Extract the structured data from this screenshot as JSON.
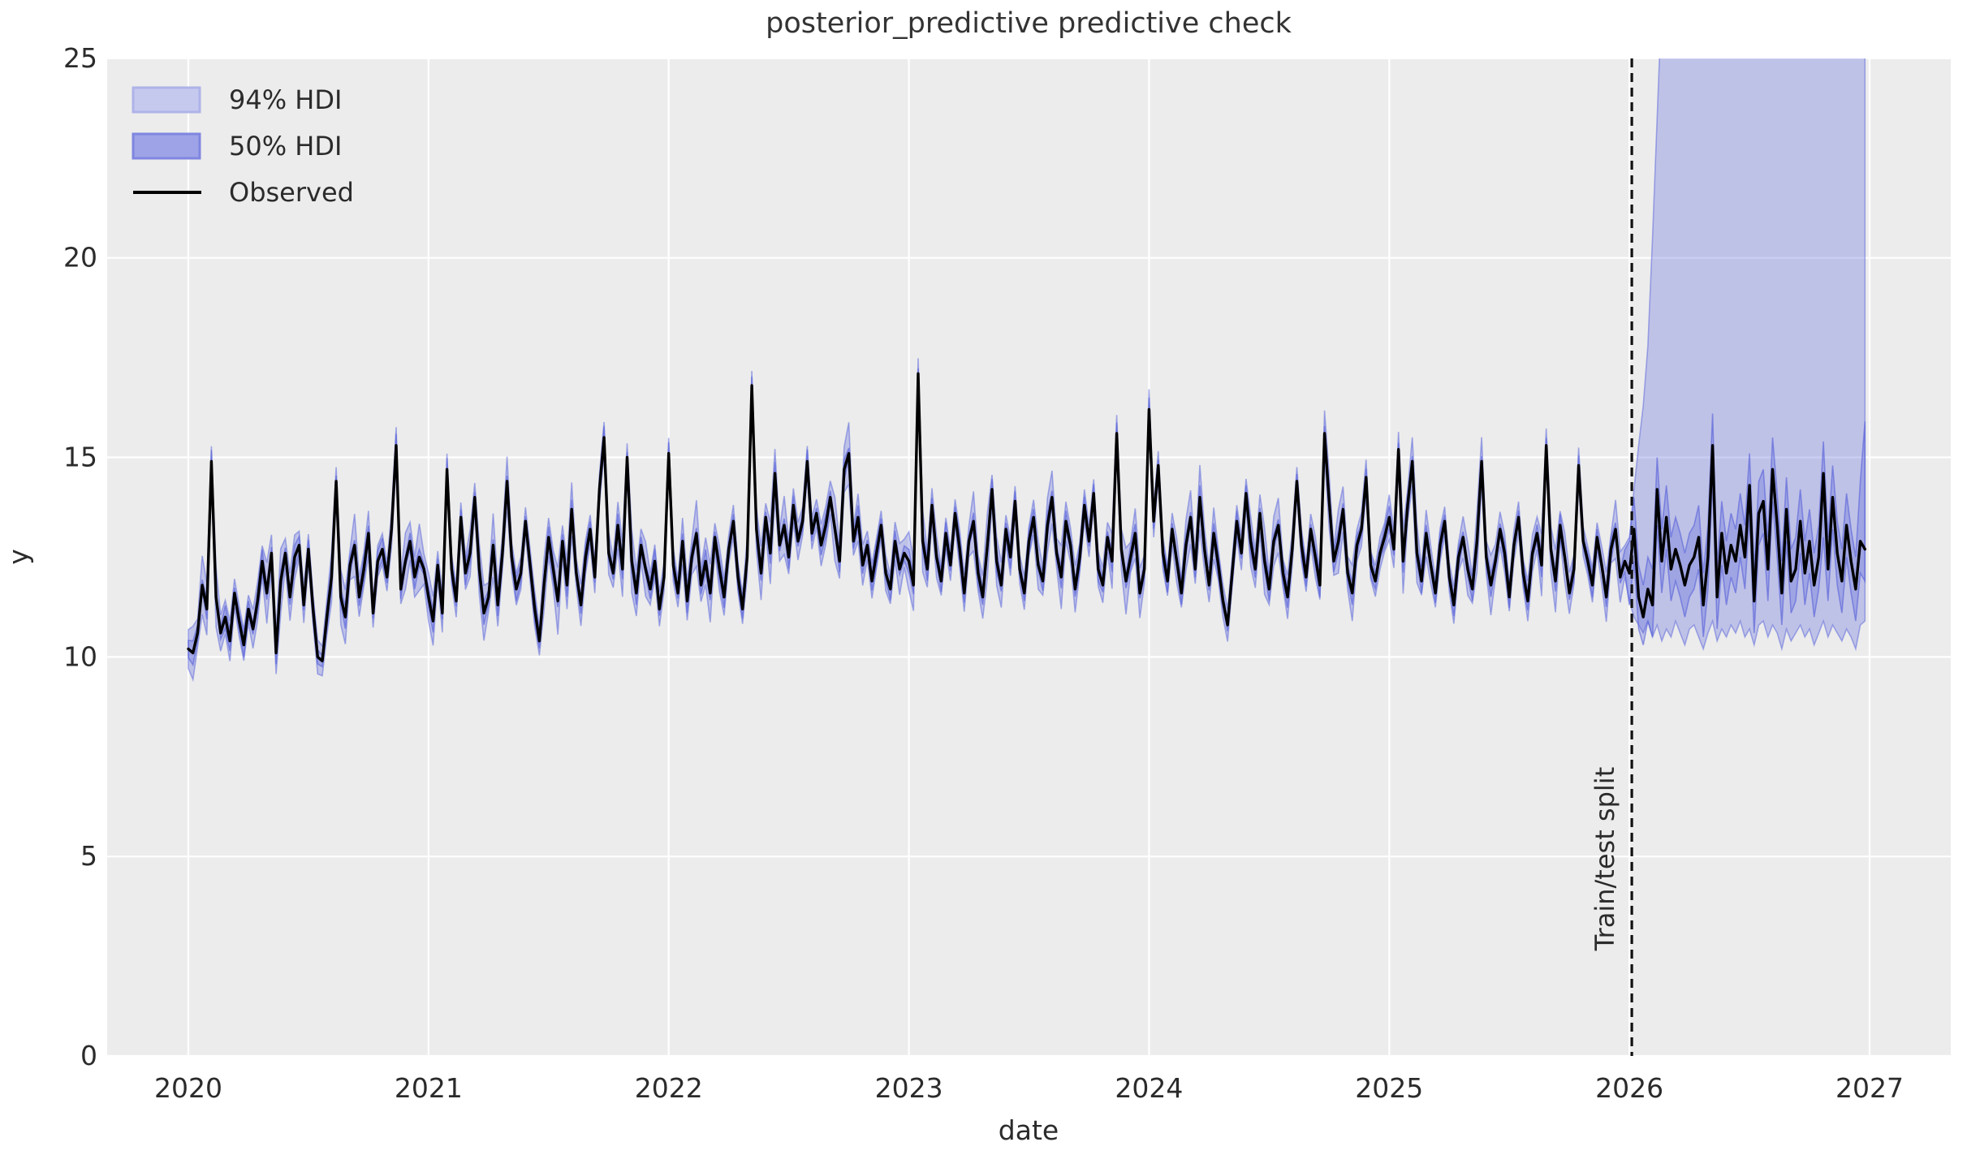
{
  "title": "posterior_predictive predictive check",
  "axes": {
    "xlabel": "date",
    "ylabel": "y",
    "x_ticks": [
      2020,
      2021,
      2022,
      2023,
      2024,
      2025,
      2026,
      2027
    ],
    "y_ticks": [
      0,
      5,
      10,
      15,
      20,
      25
    ],
    "xlim": [
      2019.662,
      2027.338
    ],
    "ylim": [
      0,
      25
    ],
    "background_color": "#ececec",
    "gridline_color": "#ffffff"
  },
  "legend": {
    "items": [
      {
        "label": "94% HDI",
        "swatch_fill": "#c6c9ee",
        "swatch_edge": "#aeb3e9"
      },
      {
        "label": "50% HDI",
        "swatch_fill": "#9da3e6",
        "swatch_edge": "#7f86e0"
      },
      {
        "label": "Observed",
        "line_color": "#000000"
      }
    ]
  },
  "split": {
    "x": 2026.01,
    "label": "Train/test split",
    "line_color": "#111111"
  },
  "colors": {
    "hdi_base": "#5661d9",
    "observed_line": "#000000",
    "text": "#2b2b2b"
  },
  "chart_data": {
    "type": "line",
    "title": "posterior_predictive predictive check",
    "xlabel": "date",
    "ylabel": "y",
    "x_start": 2020.0,
    "x_step_years": 0.0192308,
    "n_train": 312,
    "legend_position": "upper left",
    "grid": true,
    "observed": [
      10.2,
      10.1,
      10.6,
      11.8,
      11.2,
      14.9,
      11.5,
      10.6,
      11.0,
      10.4,
      11.6,
      10.9,
      10.3,
      11.2,
      10.7,
      11.4,
      12.4,
      11.6,
      12.6,
      10.1,
      11.9,
      12.6,
      11.5,
      12.5,
      12.8,
      11.3,
      12.7,
      11.2,
      10.0,
      9.9,
      11.0,
      12.0,
      14.4,
      11.5,
      11.0,
      12.3,
      12.8,
      11.5,
      12.2,
      13.1,
      11.1,
      12.4,
      12.7,
      12.0,
      13.2,
      15.3,
      11.7,
      12.4,
      12.9,
      12.0,
      12.5,
      12.2,
      11.5,
      10.9,
      12.3,
      11.1,
      14.7,
      12.2,
      11.4,
      13.5,
      12.1,
      12.6,
      14.0,
      12.2,
      11.1,
      11.5,
      12.8,
      11.3,
      12.6,
      14.4,
      12.5,
      11.7,
      12.1,
      13.4,
      12.3,
      11.2,
      10.4,
      11.8,
      13.0,
      12.2,
      11.4,
      12.9,
      11.8,
      13.7,
      12.1,
      11.3,
      12.5,
      13.2,
      12.0,
      14.2,
      15.5,
      12.6,
      12.1,
      13.3,
      12.2,
      15.0,
      12.4,
      11.6,
      12.8,
      12.2,
      11.7,
      12.4,
      11.2,
      12.0,
      15.1,
      12.3,
      11.6,
      12.9,
      11.4,
      12.5,
      13.1,
      11.8,
      12.4,
      11.6,
      13.0,
      12.2,
      11.5,
      12.7,
      13.4,
      12.0,
      11.2,
      12.5,
      16.8,
      13.2,
      12.1,
      13.5,
      12.6,
      14.6,
      12.8,
      13.3,
      12.5,
      13.8,
      12.9,
      13.4,
      14.9,
      13.1,
      13.6,
      12.8,
      13.3,
      14.0,
      13.2,
      12.4,
      14.7,
      15.1,
      12.9,
      13.5,
      12.3,
      12.8,
      11.9,
      12.6,
      13.3,
      12.1,
      11.7,
      12.9,
      12.2,
      12.6,
      12.4,
      11.8,
      17.1,
      12.9,
      12.2,
      13.8,
      12.5,
      11.9,
      13.1,
      12.3,
      13.6,
      12.7,
      11.6,
      12.9,
      13.4,
      12.1,
      11.5,
      12.8,
      14.2,
      12.4,
      11.8,
      13.2,
      12.5,
      13.9,
      12.2,
      11.6,
      12.9,
      13.5,
      12.3,
      11.9,
      13.3,
      14.0,
      12.6,
      12.0,
      13.4,
      12.8,
      11.7,
      12.5,
      13.8,
      12.9,
      14.1,
      12.2,
      11.8,
      13.0,
      12.4,
      15.6,
      12.7,
      11.9,
      12.5,
      13.1,
      11.6,
      12.2,
      16.2,
      13.4,
      14.8,
      12.6,
      11.9,
      13.2,
      12.4,
      11.6,
      12.8,
      13.5,
      12.2,
      14.0,
      12.7,
      11.8,
      13.1,
      12.3,
      11.4,
      10.8,
      12.1,
      13.4,
      12.6,
      14.1,
      12.9,
      12.2,
      13.6,
      12.4,
      11.7,
      12.9,
      13.3,
      12.1,
      11.5,
      12.7,
      14.4,
      12.8,
      12.0,
      13.2,
      12.5,
      11.8,
      15.6,
      13.9,
      12.4,
      12.9,
      13.7,
      12.1,
      11.6,
      12.8,
      13.2,
      14.5,
      12.3,
      11.9,
      12.6,
      13.0,
      13.5,
      12.7,
      15.2,
      12.4,
      13.8,
      14.9,
      12.6,
      11.9,
      13.1,
      12.3,
      11.6,
      12.8,
      13.4,
      12.0,
      11.3,
      12.5,
      13.0,
      12.2,
      11.7,
      12.9,
      14.9,
      12.5,
      11.8,
      12.4,
      13.2,
      12.6,
      11.5,
      12.8,
      13.5,
      12.1,
      11.4,
      12.6,
      13.1,
      12.3,
      15.3,
      12.7,
      11.9,
      13.3,
      12.5,
      11.6,
      12.2,
      14.8,
      12.9,
      12.4,
      11.8,
      13.0,
      12.3,
      11.5,
      12.7,
      13.2,
      12.0,
      12.4,
      12.1,
      13.2,
      11.5,
      11.0,
      11.7,
      11.3,
      14.2,
      12.4,
      13.5,
      12.2,
      12.7,
      12.3,
      11.8,
      12.3,
      12.5,
      13.0,
      11.3,
      12.5,
      15.3,
      11.5,
      13.1,
      12.1,
      12.8,
      12.4,
      13.3,
      12.5,
      14.3,
      11.4,
      13.6,
      13.9,
      12.2,
      14.7,
      13.3,
      11.6,
      13.7,
      11.9,
      12.2,
      13.4,
      12.1,
      12.9,
      11.8,
      12.5,
      14.6,
      12.2,
      14.0,
      12.6,
      11.9,
      13.3,
      12.4,
      11.7,
      12.9,
      12.7
    ],
    "train_band_halfwidths": {
      "hdi94_base": 0.35,
      "hdi94_amp": 0.5,
      "hdi50_base": 0.13,
      "hdi50_amp": 0.17
    },
    "test_hdi": {
      "hdi94_upper": [
        13.0,
        14.2,
        15.3,
        16.3,
        17.8,
        20.5,
        23.5,
        26.5,
        28.5,
        29.5,
        30.5,
        29.8,
        30.8,
        31.2,
        30.2,
        29.6,
        30.4,
        31.0,
        30.6,
        29.9,
        30.8,
        31.4,
        30.1,
        29.7,
        30.5,
        31.1,
        30.3,
        29.8,
        30.9,
        31.3,
        30.4,
        30.0,
        30.7,
        31.2,
        30.2,
        29.9,
        30.6,
        31.0,
        30.3,
        30.1,
        30.8,
        31.4,
        30.5,
        29.8,
        30.6,
        31.1,
        30.2,
        29.9,
        30.7,
        31.3,
        30.4,
        30.0
      ],
      "hdi94_lower": [
        11.4,
        11.0,
        10.8,
        10.6,
        10.9,
        10.5,
        10.8,
        10.4,
        10.7,
        10.5,
        10.9,
        10.6,
        10.3,
        10.7,
        10.8,
        10.5,
        10.2,
        10.6,
        10.9,
        10.4,
        10.7,
        10.5,
        10.8,
        10.6,
        10.9,
        10.5,
        10.7,
        10.3,
        10.8,
        10.9,
        10.5,
        10.8,
        10.6,
        10.2,
        10.7,
        10.4,
        10.6,
        10.8,
        10.5,
        10.7,
        10.3,
        10.6,
        10.9,
        10.5,
        10.8,
        10.6,
        10.4,
        10.7,
        10.5,
        10.2,
        10.8,
        10.9
      ],
      "hdi50_upper": [
        12.9,
        14.0,
        12.3,
        11.8,
        12.5,
        12.2,
        15.0,
        13.2,
        14.3,
        13.0,
        13.5,
        13.1,
        12.6,
        13.1,
        13.3,
        13.8,
        12.1,
        13.3,
        16.1,
        12.3,
        13.9,
        12.9,
        13.6,
        13.2,
        14.1,
        13.3,
        15.1,
        12.2,
        14.4,
        14.7,
        13.0,
        15.5,
        14.1,
        12.4,
        14.5,
        12.7,
        13.0,
        14.2,
        12.9,
        13.7,
        12.6,
        13.3,
        15.4,
        13.0,
        14.8,
        13.4,
        12.7,
        14.1,
        13.2,
        12.5,
        14.4,
        15.9
      ],
      "hdi50_lower": [
        11.3,
        12.4,
        10.7,
        10.3,
        10.9,
        10.5,
        13.3,
        11.6,
        12.7,
        11.4,
        11.9,
        11.5,
        11.0,
        11.5,
        11.7,
        12.2,
        10.5,
        11.7,
        14.4,
        10.7,
        12.3,
        11.3,
        12.0,
        11.6,
        12.5,
        11.7,
        13.5,
        10.6,
        12.8,
        13.1,
        11.4,
        13.9,
        12.5,
        10.8,
        12.9,
        11.1,
        11.4,
        12.6,
        11.3,
        12.1,
        11.0,
        11.7,
        13.0,
        11.4,
        13.2,
        11.8,
        11.1,
        12.5,
        11.6,
        10.9,
        12.1,
        11.9
      ]
    }
  }
}
